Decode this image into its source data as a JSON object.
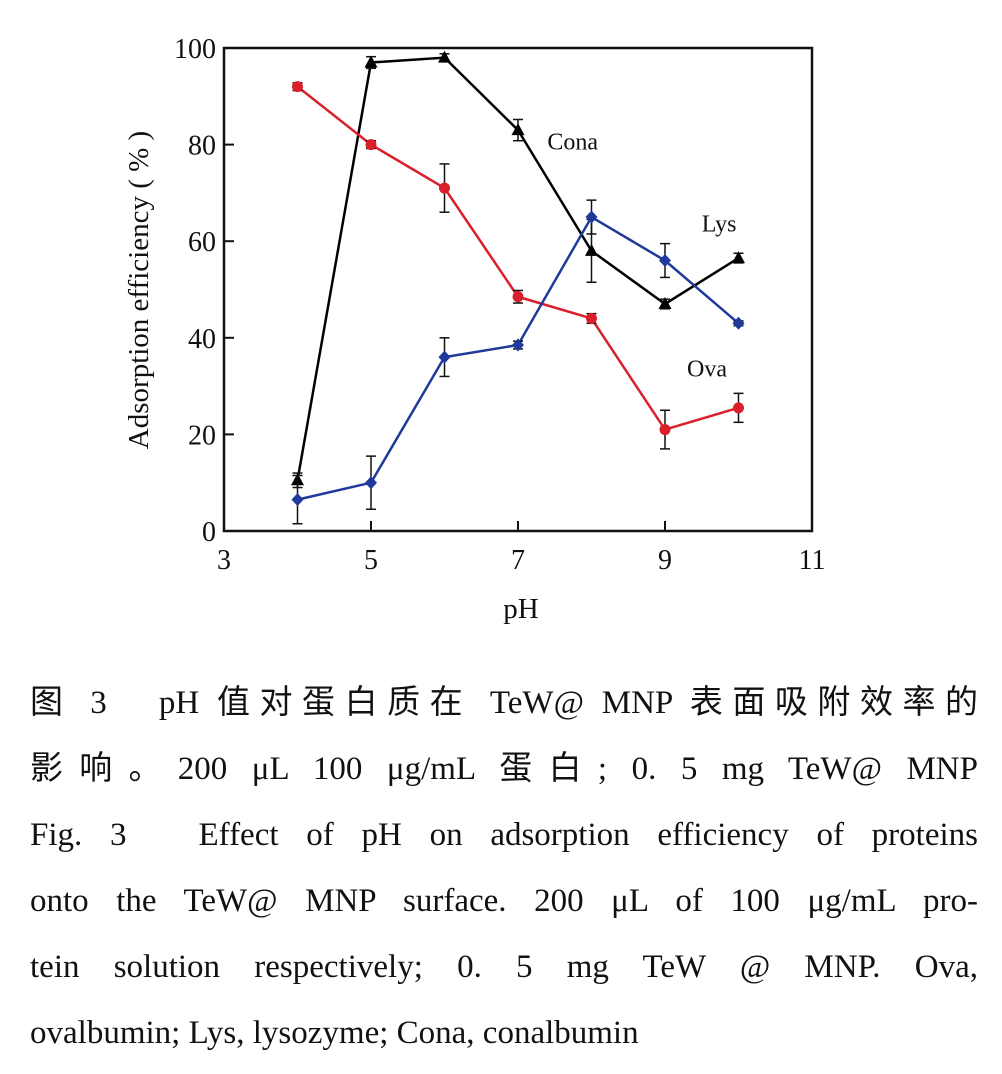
{
  "chart_data": {
    "type": "line",
    "xlabel": "pH",
    "ylabel": "Adsorption  efficiency ( % )",
    "xlim": [
      3,
      11
    ],
    "ylim": [
      0,
      100
    ],
    "xticks": [
      3,
      5,
      7,
      9,
      11
    ],
    "yticks": [
      0,
      20,
      40,
      60,
      80,
      100
    ],
    "grid": false,
    "legend": "inline labels next to lines",
    "x": [
      4,
      5,
      6,
      7,
      8,
      9,
      10
    ],
    "series": [
      {
        "name": "Cona",
        "color": "#000000",
        "marker": "triangle",
        "values": [
          10.5,
          97,
          98,
          83,
          58,
          47,
          56.5
        ],
        "errors": [
          1.5,
          1.2,
          0.8,
          2.2,
          6.5,
          1.0,
          1.0
        ]
      },
      {
        "name": "Ova",
        "color": "#d9202a",
        "marker": "circle",
        "values": [
          92,
          80,
          71,
          48.5,
          44,
          21,
          25.5
        ],
        "errors": [
          0.8,
          0.8,
          5.0,
          1.3,
          1.0,
          4.0,
          3.0
        ]
      },
      {
        "name": "Lys",
        "color": "#1f3a9a",
        "marker": "diamond",
        "values": [
          6.5,
          10,
          36,
          38.5,
          65,
          56,
          43
        ],
        "errors": [
          5.0,
          5.5,
          4.0,
          0.8,
          3.5,
          3.5,
          0.5
        ]
      }
    ]
  },
  "caption": {
    "zh_line1": "图 3　pH 值对蛋白质在 TeW@ MNP 表面吸附效率的",
    "zh_line2": "影响。200 μL 100 μg/mL 蛋白; 0. 5 mg TeW@ MNP",
    "en_line1": "Fig. 3　Effect of pH on adsorption efficiency of proteins",
    "en_line2": "onto the TeW@ MNP surface. 200 μL of 100 μg/mL pro-",
    "en_line3": "tein solution respectively; 0. 5 mg TeW @ MNP.  Ova,",
    "en_line4": "ovalbumin; Lys, lysozyme; Cona, conalbumin"
  }
}
